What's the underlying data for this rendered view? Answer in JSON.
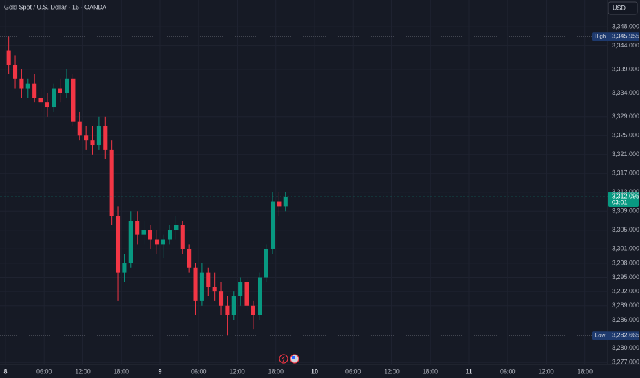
{
  "chart_data": {
    "type": "candlestick",
    "title": "Gold Spot / U.S. Dollar · 15 · OANDA",
    "currency": "USD",
    "up_color": "#089981",
    "down_color": "#f23645",
    "grid": true,
    "xlim": [
      -0.85,
      93.55
    ],
    "xticks": [
      {
        "value": 0,
        "label": "8"
      },
      {
        "value": 6,
        "label": "06:00"
      },
      {
        "value": 12,
        "label": "12:00"
      },
      {
        "value": 18,
        "label": "18:00"
      },
      {
        "value": 24,
        "label": "9"
      },
      {
        "value": 30,
        "label": "06:00"
      },
      {
        "value": 36,
        "label": "12:00"
      },
      {
        "value": 42,
        "label": "18:00"
      },
      {
        "value": 48,
        "label": "10"
      },
      {
        "value": 54,
        "label": "06:00"
      },
      {
        "value": 60,
        "label": "12:00"
      },
      {
        "value": 66,
        "label": "18:00"
      },
      {
        "value": 72,
        "label": "11"
      },
      {
        "value": 78,
        "label": "06:00"
      },
      {
        "value": 84,
        "label": "12:00"
      },
      {
        "value": 90,
        "label": "18:00"
      }
    ],
    "ylim": [
      3276.6,
      3353.7
    ],
    "yticks": [
      {
        "value": 3348,
        "label": "3,348.000"
      },
      {
        "value": 3344,
        "label": "3,344.000"
      },
      {
        "value": 3339,
        "label": "3,339.000"
      },
      {
        "value": 3334,
        "label": "3,334.000"
      },
      {
        "value": 3329,
        "label": "3,329.000"
      },
      {
        "value": 3325,
        "label": "3,325.000"
      },
      {
        "value": 3321,
        "label": "3,321.000"
      },
      {
        "value": 3317,
        "label": "3,317.000"
      },
      {
        "value": 3313,
        "label": "3,313.000"
      },
      {
        "value": 3309,
        "label": "3,309.000"
      },
      {
        "value": 3305,
        "label": "3,305.000"
      },
      {
        "value": 3301,
        "label": "3,301.000"
      },
      {
        "value": 3298,
        "label": "3,298.000"
      },
      {
        "value": 3295,
        "label": "3,295.000"
      },
      {
        "value": 3292,
        "label": "3,292.000"
      },
      {
        "value": 3289,
        "label": "3,289.000"
      },
      {
        "value": 3286,
        "label": "3,286.000"
      },
      {
        "value": 3280,
        "label": "3,280.000"
      },
      {
        "value": 3277,
        "label": "3,277.000"
      }
    ],
    "candles": {
      "x": [
        0.5,
        1.5,
        2.5,
        3.5,
        4.5,
        5.5,
        6.5,
        7.5,
        8.5,
        9.5,
        10.5,
        11.5,
        12.5,
        13.5,
        14.5,
        15.5,
        16.5,
        17.5,
        18.5,
        19.5,
        20.5,
        21.5,
        22.5,
        23.5,
        24.5,
        25.5,
        26.5,
        27.5,
        28.5,
        29.5,
        30.5,
        31.5,
        32.5,
        33.5,
        34.5,
        35.5,
        36.5,
        37.5,
        38.5,
        39.5,
        40.5,
        41.5,
        42.5,
        43.5
      ],
      "open": [
        3343,
        3340,
        3337,
        3335,
        3336,
        3333,
        3332,
        3331,
        3335,
        3334,
        3337,
        3328,
        3325,
        3324,
        3323,
        3327,
        3322,
        3308,
        3296,
        3298,
        3307,
        3304,
        3305,
        3303,
        3302,
        3303,
        3305,
        3306,
        3301,
        3297,
        3290,
        3296,
        3293,
        3292,
        3289,
        3287,
        3291,
        3294,
        3289,
        3287,
        3295,
        3301,
        3311,
        3310
      ],
      "high": [
        3345.955,
        3342,
        3339,
        3337,
        3338,
        3335,
        3334,
        3336,
        3337,
        3339,
        3338,
        3330,
        3327,
        3327,
        3329,
        3329,
        3324,
        3310,
        3300,
        3309,
        3309,
        3307,
        3306,
        3305,
        3304,
        3306,
        3308,
        3307,
        3302,
        3298,
        3298,
        3297,
        3296,
        3294,
        3291,
        3292,
        3295,
        3295,
        3290,
        3296,
        3302,
        3313,
        3313,
        3313
      ],
      "low": [
        3338,
        3335,
        3333,
        3333,
        3332,
        3330,
        3329,
        3330,
        3332,
        3333,
        3327,
        3324,
        3322,
        3321,
        3322,
        3320,
        3306,
        3290,
        3294,
        3297,
        3302,
        3302,
        3301,
        3300,
        3299,
        3302,
        3303,
        3300,
        3296,
        3287,
        3289,
        3291,
        3290,
        3287,
        3282.665,
        3286,
        3289,
        3288,
        3284,
        3286,
        3294,
        3300,
        3308,
        3309
      ],
      "close": [
        3340,
        3337,
        3335,
        3336,
        3333,
        3332,
        3331,
        3335,
        3334,
        3337,
        3328,
        3325,
        3324,
        3323,
        3327,
        3322,
        3308,
        3296,
        3298,
        3307,
        3304,
        3305,
        3303,
        3302,
        3303,
        3305,
        3306,
        3301,
        3297,
        3290,
        3296,
        3293,
        3292,
        3289,
        3287,
        3291,
        3294,
        3289,
        3287,
        3295,
        3301,
        3311,
        3310,
        3312.095
      ]
    },
    "high_marker": {
      "label": "High",
      "value": 3345.955,
      "value_label": "3,345.955"
    },
    "low_marker": {
      "label": "Low",
      "value": 3282.665,
      "value_label": "3,282.665"
    },
    "last_price": {
      "value": 3312.095,
      "value_label": "3,312.095",
      "countdown": "03:01"
    }
  }
}
